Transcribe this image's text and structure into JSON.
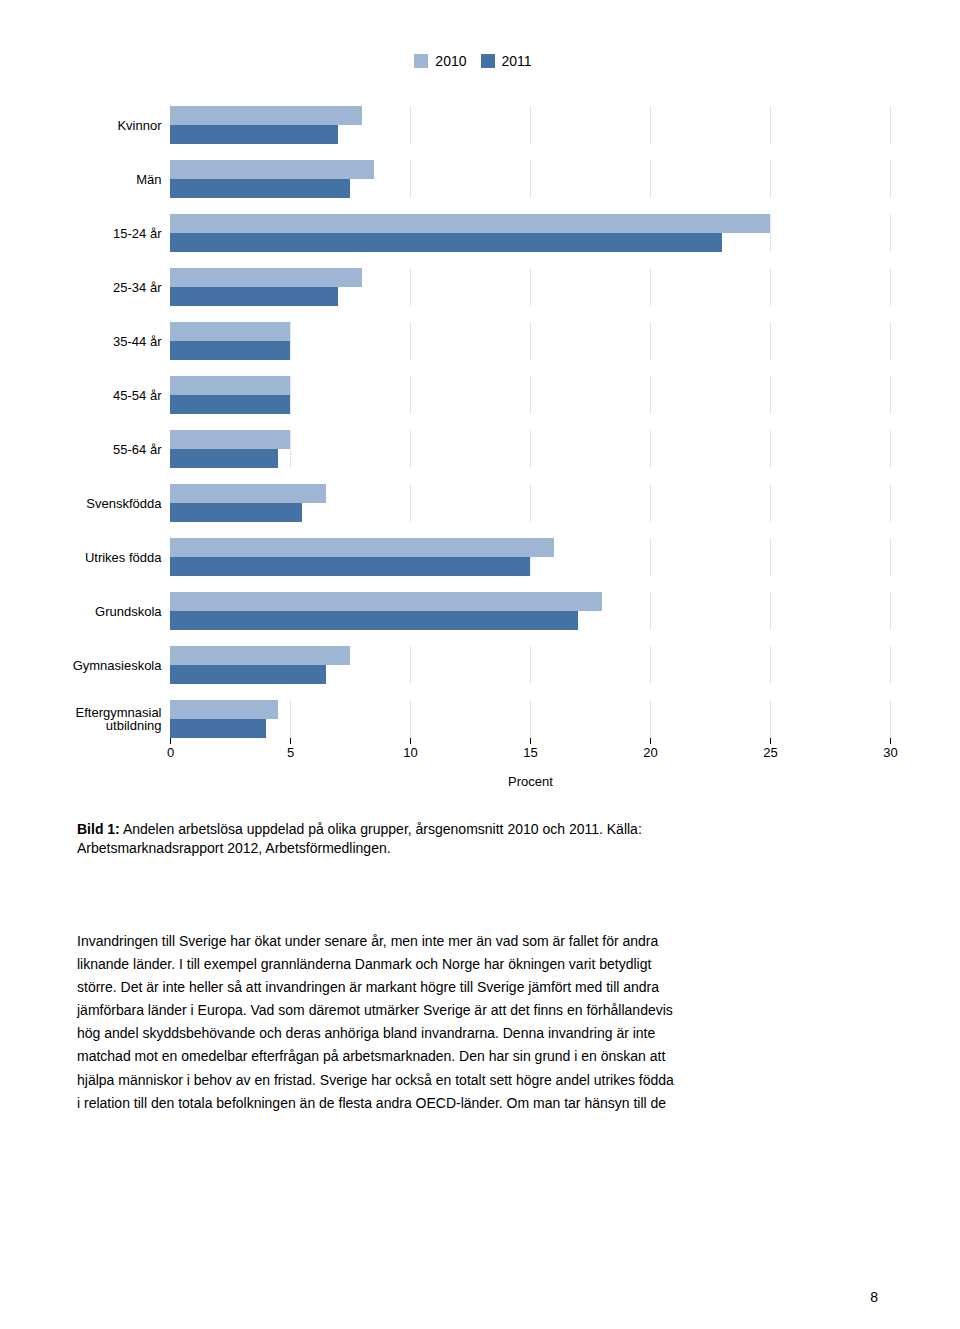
{
  "chart_data": {
    "type": "bar",
    "orientation": "horizontal",
    "categories": [
      "Kvinnor",
      "Män",
      "15-24 år",
      "25-34 år",
      "35-44 år",
      "45-54 år",
      "55-64 år",
      "Svenskfödda",
      "Utrikes födda",
      "Grundskola",
      "Gymnasieskola",
      "Eftergymnasial\nutbildning"
    ],
    "series": [
      {
        "name": "2010",
        "color": "#9EB6D4",
        "values": [
          8.0,
          8.5,
          25.0,
          8.0,
          5.0,
          5.0,
          5.0,
          6.5,
          16.0,
          18.0,
          7.5,
          4.5
        ]
      },
      {
        "name": "2011",
        "color": "#4472A4",
        "values": [
          7.0,
          7.5,
          23.0,
          7.0,
          5.0,
          5.0,
          4.5,
          5.5,
          15.0,
          17.0,
          6.5,
          4.0
        ]
      }
    ],
    "xlabel": "Procent",
    "xlim": [
      0,
      30
    ],
    "xticks": [
      0,
      5,
      10,
      15,
      20,
      25,
      30
    ],
    "grid": true,
    "legend": "top",
    "annotations": [
      "Bild 1:",
      " Andelen arbetslösa uppdelad på olika grupper, årsgenomsnitt 2010 och 2011. Källa:\nArbetsmarknadsrapport 2012, Arbetsförmedlingen.",
      "Invandringen till Sverige har ökat under senare år, men inte mer än vad som är fallet för andra\nliknande länder. I till exempel grannländerna Danmark och Norge har ökningen varit betydligt\nstörre. Det är inte heller så att invandringen är markant högre till Sverige jämfört med till andra\njämförbara länder i Europa. Vad som däremot utmärker Sverige är att det finns en förhållandevis\nhög andel skyddsbehövande och deras anhöriga bland invandrarna. Denna invandring är inte\nmatchad mot en omedelbar efterfrågan på arbetsmarknaden. Den har sin grund i en önskan att\nhjälpa människor i behov av en fristad. Sverige har också en totalt sett högre andel utrikes födda\ni relation till den totala befolkningen än de flesta andra OECD-länder. Om man tar hänsyn till de",
      "8"
    ]
  }
}
